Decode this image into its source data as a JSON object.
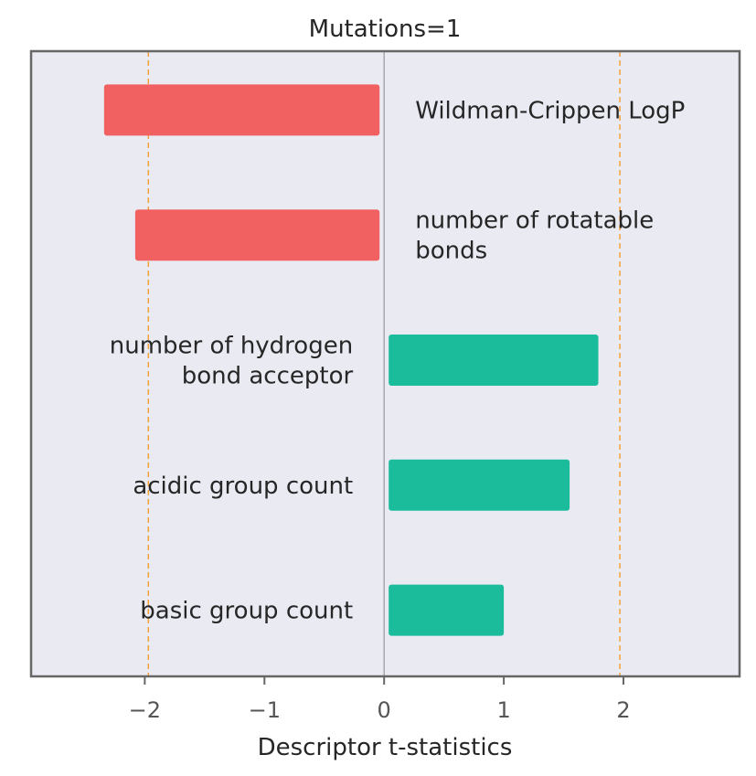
{
  "chart_data": {
    "type": "bar",
    "orientation": "horizontal",
    "title": "Mutations=1",
    "xlabel": "Descriptor t-statistics",
    "ylabel": "",
    "xlim": [
      -2.95,
      2.97
    ],
    "xticks": [
      -2,
      -1,
      0,
      1,
      2
    ],
    "xtick_labels": [
      "−2",
      "−1",
      "0",
      "1",
      "2"
    ],
    "grid": false,
    "reference_lines": {
      "zero": 0,
      "threshold_neg": -1.97,
      "threshold_pos": 1.97
    },
    "categories": [
      "Wildman-Crippen LogP",
      "number of rotatable bonds",
      "number of hydrogen bond acceptor",
      "acidic group count",
      "basic group count"
    ],
    "label_lines": [
      [
        "Wildman-Crippen LogP"
      ],
      [
        "number of rotatable",
        "bonds"
      ],
      [
        "number of hydrogen",
        "bond acceptor"
      ],
      [
        "acidic group count"
      ],
      [
        "basic group count"
      ]
    ],
    "values": [
      -2.34,
      -2.08,
      1.79,
      1.55,
      1.0
    ],
    "colors": {
      "negative": "#f26161",
      "positive": "#1abc9c",
      "plot_bg": "#eaeaf2",
      "threshold": "#f5a13b",
      "zero_line": "#999999",
      "frame": "#666666"
    }
  }
}
